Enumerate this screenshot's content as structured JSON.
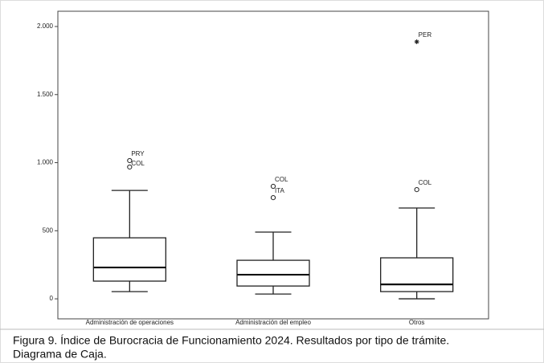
{
  "chart_data": {
    "type": "box",
    "categories": [
      "Administración de operaciones",
      "Administración del empleo",
      "Otros"
    ],
    "boxes": [
      {
        "min": 53,
        "q1": 130,
        "median": 230,
        "q3": 448,
        "max": 796,
        "outliers": [
          {
            "label": "PRY",
            "value": 1015,
            "marker": "circle"
          },
          {
            "label": "COL",
            "value": 968,
            "marker": "circle"
          }
        ]
      },
      {
        "min": 35,
        "q1": 94,
        "median": 177,
        "q3": 283,
        "max": 490,
        "outliers": [
          {
            "label": "COL",
            "value": 826,
            "marker": "circle"
          },
          {
            "label": "ITA",
            "value": 743,
            "marker": "circle"
          }
        ]
      },
      {
        "min": 0,
        "q1": 53,
        "median": 106,
        "q3": 301,
        "max": 667,
        "outliers": [
          {
            "label": "COL",
            "value": 802,
            "marker": "circle"
          },
          {
            "label": "PER",
            "value": 1888,
            "marker": "star"
          }
        ]
      }
    ],
    "ylim": [
      -147,
      2112
    ],
    "yticks": [
      0,
      500,
      {
        "value": 1000,
        "label": "1.000"
      },
      {
        "value": 1500,
        "label": "1.500"
      },
      {
        "value": 2000,
        "label": "2.000"
      }
    ],
    "color": "#ffffff",
    "caption": [
      "Figura 9. Índice de Burocracia de Funcionamiento 2024. Resultados por tipo de trámite.",
      "Diagrama de Caja."
    ]
  }
}
